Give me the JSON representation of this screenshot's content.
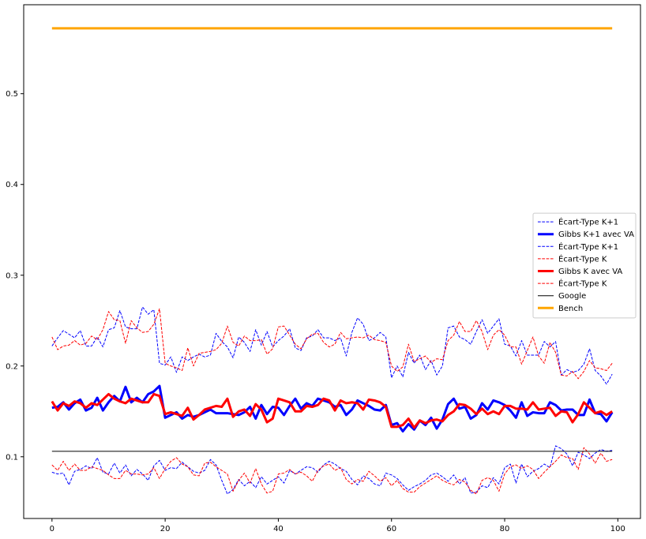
{
  "chart_data": {
    "type": "line",
    "title": "",
    "xlabel": "",
    "ylabel": "",
    "xlim": [
      -5,
      104
    ],
    "ylim": [
      0.032,
      0.598
    ],
    "xticks": [
      0,
      20,
      40,
      60,
      80,
      100
    ],
    "yticks": [
      0.1,
      0.2,
      0.3,
      0.4,
      0.5
    ],
    "xtick_labels": [
      "0",
      "20",
      "40",
      "60",
      "80",
      "100"
    ],
    "ytick_labels": [
      "0.1",
      "0.2",
      "0.3",
      "0.4",
      "0.5"
    ],
    "grid": false,
    "legend_position": "center-right",
    "x": [
      0,
      1,
      2,
      3,
      4,
      5,
      6,
      7,
      8,
      9,
      10,
      11,
      12,
      13,
      14,
      15,
      16,
      17,
      18,
      19,
      20,
      21,
      22,
      23,
      24,
      25,
      26,
      27,
      28,
      29,
      30,
      31,
      32,
      33,
      34,
      35,
      36,
      37,
      38,
      39,
      40,
      41,
      42,
      43,
      44,
      45,
      46,
      47,
      48,
      49,
      50,
      51,
      52,
      53,
      54,
      55,
      56,
      57,
      58,
      59,
      60,
      61,
      62,
      63,
      64,
      65,
      66,
      67,
      68,
      69,
      70,
      71,
      72,
      73,
      74,
      75,
      76,
      77,
      78,
      79,
      80,
      81,
      82,
      83,
      84,
      85,
      86,
      87,
      88,
      89,
      90,
      91,
      92,
      93,
      94,
      95,
      96,
      97,
      98,
      99
    ],
    "series": [
      {
        "name": "Écart-Type K+1",
        "color": "#0000ff",
        "style": "dashed",
        "width": 1,
        "values": [
          0.222,
          0.231,
          0.239,
          0.235,
          0.231,
          0.239,
          0.222,
          0.222,
          0.232,
          0.221,
          0.24,
          0.242,
          0.261,
          0.243,
          0.241,
          0.241,
          0.265,
          0.257,
          0.262,
          0.203,
          0.201,
          0.21,
          0.193,
          0.21,
          0.206,
          0.21,
          0.213,
          0.21,
          0.212,
          0.236,
          0.227,
          0.221,
          0.209,
          0.232,
          0.226,
          0.216,
          0.24,
          0.223,
          0.238,
          0.221,
          0.228,
          0.233,
          0.241,
          0.22,
          0.217,
          0.231,
          0.233,
          0.24,
          0.231,
          0.231,
          0.228,
          0.231,
          0.211,
          0.237,
          0.253,
          0.246,
          0.228,
          0.231,
          0.237,
          0.232,
          0.187,
          0.2,
          0.188,
          0.215,
          0.203,
          0.212,
          0.196,
          0.206,
          0.19,
          0.2,
          0.242,
          0.244,
          0.232,
          0.229,
          0.224,
          0.238,
          0.251,
          0.236,
          0.244,
          0.252,
          0.224,
          0.222,
          0.211,
          0.228,
          0.212,
          0.212,
          0.212,
          0.227,
          0.221,
          0.227,
          0.19,
          0.196,
          0.193,
          0.195,
          0.202,
          0.219,
          0.195,
          0.189,
          0.18,
          0.191
        ]
      },
      {
        "name": "Gibbs K+1 avec VA",
        "color": "#0000ff",
        "style": "solid",
        "width": 3,
        "values": [
          0.154,
          0.155,
          0.16,
          0.152,
          0.159,
          0.163,
          0.151,
          0.154,
          0.165,
          0.151,
          0.16,
          0.167,
          0.161,
          0.177,
          0.16,
          0.165,
          0.16,
          0.169,
          0.172,
          0.178,
          0.143,
          0.146,
          0.149,
          0.142,
          0.146,
          0.144,
          0.146,
          0.149,
          0.152,
          0.148,
          0.148,
          0.148,
          0.147,
          0.146,
          0.149,
          0.155,
          0.142,
          0.157,
          0.147,
          0.155,
          0.154,
          0.146,
          0.156,
          0.164,
          0.153,
          0.159,
          0.156,
          0.164,
          0.162,
          0.16,
          0.155,
          0.157,
          0.146,
          0.152,
          0.162,
          0.159,
          0.156,
          0.152,
          0.151,
          0.157,
          0.135,
          0.137,
          0.128,
          0.136,
          0.13,
          0.14,
          0.135,
          0.143,
          0.131,
          0.141,
          0.158,
          0.164,
          0.153,
          0.155,
          0.142,
          0.146,
          0.159,
          0.152,
          0.162,
          0.16,
          0.157,
          0.151,
          0.143,
          0.16,
          0.145,
          0.149,
          0.148,
          0.148,
          0.16,
          0.157,
          0.151,
          0.152,
          0.152,
          0.146,
          0.146,
          0.163,
          0.148,
          0.147,
          0.139,
          0.149
        ]
      },
      {
        "name": "Écart-Type K+1",
        "color": "#0000ff",
        "style": "dashed",
        "width": 1,
        "values": [
          0.083,
          0.081,
          0.082,
          0.069,
          0.084,
          0.086,
          0.09,
          0.087,
          0.099,
          0.083,
          0.081,
          0.093,
          0.082,
          0.091,
          0.079,
          0.086,
          0.081,
          0.074,
          0.09,
          0.096,
          0.085,
          0.088,
          0.087,
          0.094,
          0.089,
          0.084,
          0.082,
          0.085,
          0.097,
          0.091,
          0.074,
          0.059,
          0.064,
          0.075,
          0.068,
          0.073,
          0.066,
          0.078,
          0.07,
          0.074,
          0.078,
          0.071,
          0.085,
          0.081,
          0.085,
          0.089,
          0.088,
          0.083,
          0.091,
          0.095,
          0.092,
          0.087,
          0.084,
          0.075,
          0.069,
          0.079,
          0.076,
          0.07,
          0.068,
          0.082,
          0.08,
          0.076,
          0.069,
          0.063,
          0.067,
          0.07,
          0.074,
          0.08,
          0.082,
          0.078,
          0.073,
          0.08,
          0.07,
          0.077,
          0.06,
          0.061,
          0.068,
          0.066,
          0.077,
          0.07,
          0.088,
          0.092,
          0.071,
          0.092,
          0.078,
          0.084,
          0.087,
          0.092,
          0.088,
          0.112,
          0.109,
          0.103,
          0.09,
          0.105,
          0.102,
          0.098,
          0.104,
          0.108,
          0.106,
          0.107
        ]
      },
      {
        "name": "Écart-Type K",
        "color": "#ff0000",
        "style": "dashed",
        "width": 1,
        "values": [
          0.232,
          0.218,
          0.222,
          0.223,
          0.228,
          0.223,
          0.225,
          0.233,
          0.229,
          0.24,
          0.26,
          0.251,
          0.25,
          0.225,
          0.25,
          0.242,
          0.237,
          0.238,
          0.246,
          0.263,
          0.203,
          0.2,
          0.198,
          0.195,
          0.22,
          0.2,
          0.214,
          0.215,
          0.216,
          0.218,
          0.225,
          0.244,
          0.226,
          0.222,
          0.233,
          0.228,
          0.228,
          0.229,
          0.213,
          0.219,
          0.243,
          0.244,
          0.234,
          0.224,
          0.219,
          0.23,
          0.235,
          0.236,
          0.226,
          0.221,
          0.224,
          0.237,
          0.23,
          0.231,
          0.232,
          0.231,
          0.234,
          0.229,
          0.228,
          0.226,
          0.2,
          0.194,
          0.199,
          0.224,
          0.205,
          0.208,
          0.211,
          0.204,
          0.208,
          0.207,
          0.228,
          0.234,
          0.249,
          0.238,
          0.238,
          0.25,
          0.238,
          0.218,
          0.234,
          0.24,
          0.234,
          0.221,
          0.221,
          0.202,
          0.217,
          0.232,
          0.211,
          0.203,
          0.226,
          0.215,
          0.19,
          0.189,
          0.194,
          0.186,
          0.194,
          0.206,
          0.198,
          0.197,
          0.195,
          0.203
        ]
      },
      {
        "name": "Gibbs K avec VA",
        "color": "#ff0000",
        "style": "solid",
        "width": 3,
        "values": [
          0.161,
          0.151,
          0.159,
          0.156,
          0.161,
          0.159,
          0.154,
          0.159,
          0.157,
          0.163,
          0.169,
          0.164,
          0.161,
          0.159,
          0.164,
          0.162,
          0.16,
          0.16,
          0.169,
          0.167,
          0.147,
          0.149,
          0.147,
          0.145,
          0.154,
          0.141,
          0.146,
          0.152,
          0.154,
          0.156,
          0.155,
          0.164,
          0.144,
          0.15,
          0.152,
          0.145,
          0.158,
          0.152,
          0.138,
          0.142,
          0.164,
          0.162,
          0.16,
          0.15,
          0.15,
          0.156,
          0.155,
          0.157,
          0.164,
          0.162,
          0.151,
          0.162,
          0.159,
          0.16,
          0.159,
          0.152,
          0.163,
          0.162,
          0.16,
          0.155,
          0.133,
          0.133,
          0.135,
          0.142,
          0.132,
          0.14,
          0.137,
          0.14,
          0.141,
          0.139,
          0.146,
          0.15,
          0.158,
          0.157,
          0.153,
          0.147,
          0.153,
          0.147,
          0.15,
          0.147,
          0.156,
          0.156,
          0.153,
          0.153,
          0.152,
          0.16,
          0.152,
          0.153,
          0.154,
          0.145,
          0.15,
          0.149,
          0.138,
          0.147,
          0.16,
          0.154,
          0.148,
          0.15,
          0.146,
          0.15
        ]
      },
      {
        "name": "Écart-Type K",
        "color": "#ff0000",
        "style": "dashed",
        "width": 1,
        "values": [
          0.091,
          0.085,
          0.095,
          0.085,
          0.092,
          0.085,
          0.085,
          0.089,
          0.087,
          0.085,
          0.08,
          0.076,
          0.076,
          0.085,
          0.081,
          0.081,
          0.08,
          0.081,
          0.088,
          0.076,
          0.087,
          0.095,
          0.099,
          0.092,
          0.089,
          0.08,
          0.079,
          0.093,
          0.094,
          0.089,
          0.085,
          0.081,
          0.062,
          0.074,
          0.082,
          0.071,
          0.087,
          0.07,
          0.06,
          0.062,
          0.081,
          0.082,
          0.086,
          0.081,
          0.083,
          0.079,
          0.073,
          0.085,
          0.09,
          0.092,
          0.085,
          0.088,
          0.075,
          0.07,
          0.075,
          0.073,
          0.084,
          0.079,
          0.073,
          0.077,
          0.068,
          0.074,
          0.065,
          0.061,
          0.061,
          0.067,
          0.071,
          0.075,
          0.079,
          0.074,
          0.071,
          0.069,
          0.075,
          0.072,
          0.063,
          0.059,
          0.074,
          0.077,
          0.074,
          0.062,
          0.081,
          0.089,
          0.091,
          0.087,
          0.09,
          0.086,
          0.076,
          0.083,
          0.089,
          0.095,
          0.102,
          0.099,
          0.098,
          0.086,
          0.11,
          0.103,
          0.093,
          0.104,
          0.095,
          0.097
        ]
      },
      {
        "name": "Google",
        "color": "#000000",
        "style": "solid",
        "width": 1,
        "x_range": [
          0,
          99
        ],
        "constant": 0.106
      },
      {
        "name": "Bench",
        "color": "#ffa500",
        "style": "solid",
        "width": 3,
        "x_range": [
          0,
          99
        ],
        "constant": 0.572
      }
    ]
  }
}
